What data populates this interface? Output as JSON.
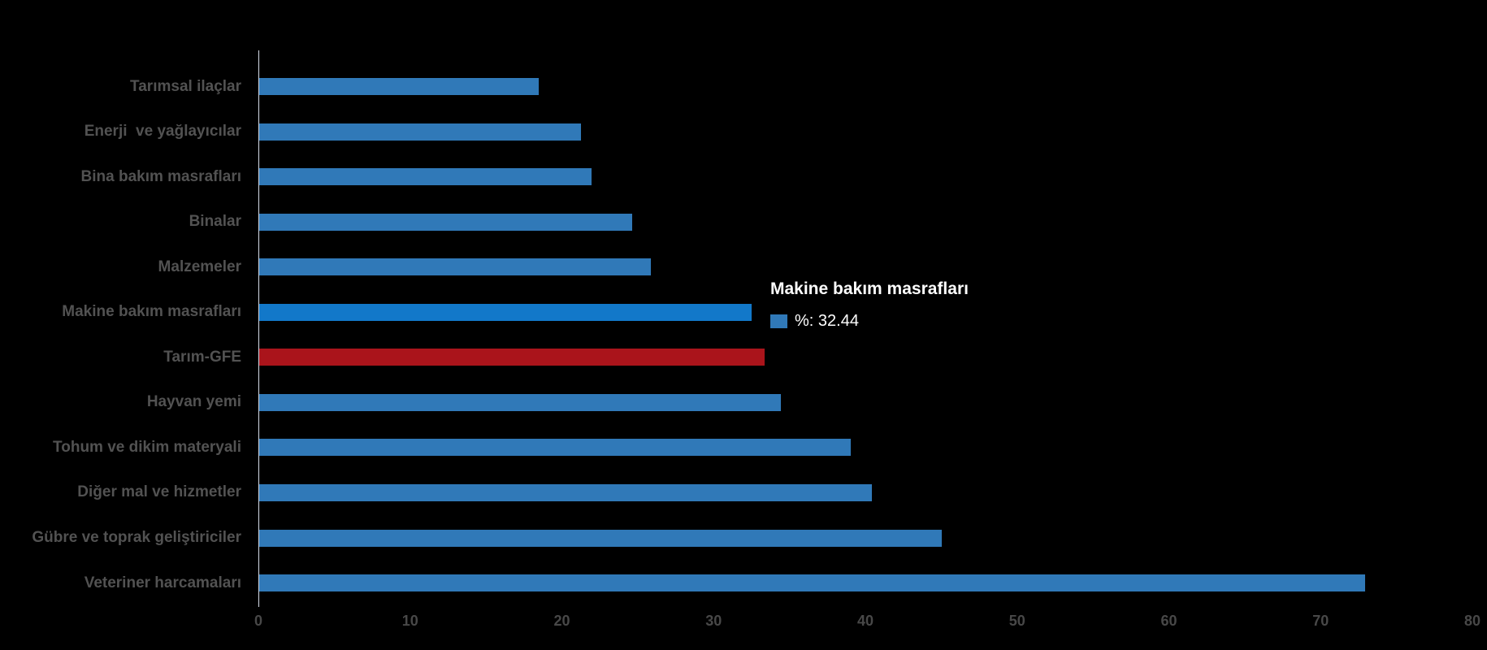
{
  "chart_data": {
    "type": "bar",
    "orientation": "horizontal",
    "title": "",
    "xlabel": "",
    "ylabel": "",
    "xlim": [
      0,
      80
    ],
    "xticks": [
      "0",
      "10",
      "20",
      "30",
      "40",
      "50",
      "60",
      "70",
      "80"
    ],
    "grid": false,
    "legend_position": "none",
    "categories": [
      "Tarımsal ilaçlar",
      "Enerji  ve yağlayıcılar",
      "Bina bakım masrafları",
      "Binalar",
      "Malzemeler",
      "Makine bakım masrafları",
      "Tarım-GFE",
      "Hayvan yemi",
      "Tohum ve dikim materyali",
      "Diğer mal ve hizmetler",
      "Gübre ve toprak geliştiriciler",
      "Veteriner harcamaları"
    ],
    "values": [
      18.4,
      21.2,
      21.9,
      24.6,
      25.8,
      32.44,
      33.3,
      34.4,
      39.0,
      40.4,
      45.0,
      72.9
    ],
    "bar_colors": [
      "#3079B8",
      "#3079B8",
      "#3079B8",
      "#3079B8",
      "#3079B8",
      "#1278C9",
      "#AA141B",
      "#3079B8",
      "#3079B8",
      "#3079B8",
      "#3079B8",
      "#3079B8"
    ],
    "highlighted_category": "Tarım-GFE",
    "hovered_category": "Makine bakım masrafları"
  },
  "colors": {
    "background": "#000000",
    "bar_normal": "#3079B8",
    "bar_hover": "#1278C9",
    "bar_highlight": "#AA141B",
    "axis_line": "#d6dce8",
    "category_label": "#525252",
    "tick_label": "#484848",
    "tooltip_text": "#ffffff"
  },
  "tooltip": {
    "title": "Makine bakım masrafları",
    "value_label": "%: 32.44",
    "swatch_color": "#3079B8"
  }
}
